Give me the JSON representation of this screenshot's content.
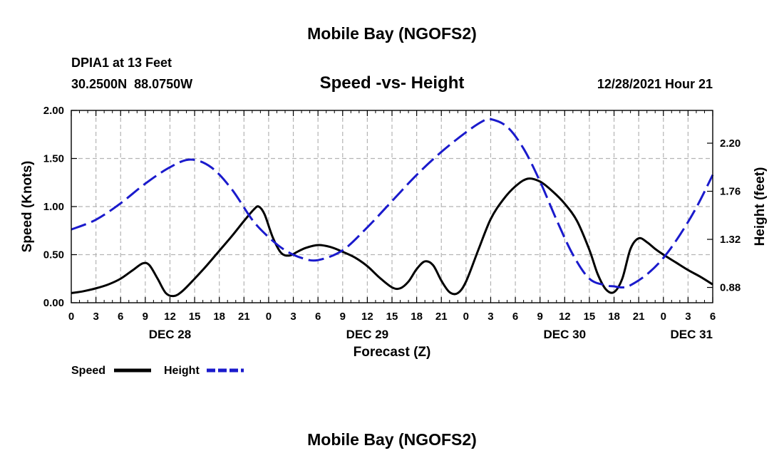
{
  "page": {
    "title_top": "Mobile Bay (NGOFS2)",
    "title_bottom": "Mobile Bay (NGOFS2)",
    "station_line1": "DPIA1 at 13 Feet",
    "station_line2": "30.2500N  88.0750W",
    "plot_title": "Speed -vs- Height",
    "timestamp": "12/28/2021 Hour 21"
  },
  "legend": {
    "speed_label": "Speed",
    "height_label": "Height"
  },
  "colors": {
    "speed": "#000000",
    "height": "#1a1acc",
    "grid": "#b4b4b4"
  },
  "chart_data": {
    "type": "line",
    "title": "Speed -vs- Height",
    "xlabel": "Forecast (Z)",
    "ylabel": "Speed (Knots)",
    "ylabel_right": "Height (feet)",
    "grid": true,
    "xlim": [
      0,
      78
    ],
    "ylim": [
      0,
      2.0
    ],
    "ylim_right": [
      0.74,
      2.5
    ],
    "x_ticks": [
      0,
      3,
      6,
      9,
      12,
      15,
      18,
      21,
      24,
      27,
      30,
      33,
      36,
      39,
      42,
      45,
      48,
      51,
      54,
      57,
      60,
      63,
      66,
      69,
      72,
      75,
      78
    ],
    "x_tick_labels": [
      "0",
      "3",
      "6",
      "9",
      "12",
      "15",
      "18",
      "21",
      "0",
      "3",
      "6",
      "9",
      "12",
      "15",
      "18",
      "21",
      "0",
      "3",
      "6",
      "9",
      "12",
      "15",
      "18",
      "21",
      "0",
      "3",
      "6"
    ],
    "y_ticks": [
      0.0,
      0.5,
      1.0,
      1.5,
      2.0
    ],
    "y_tick_labels": [
      "0.00",
      "0.50",
      "1.00",
      "1.50",
      "2.00"
    ],
    "y_ticks_right": [
      0.88,
      1.32,
      1.76,
      2.2
    ],
    "y_tick_labels_right": [
      "0.88",
      "1.32",
      "1.76",
      "2.20"
    ],
    "day_labels": [
      {
        "label": "DEC 28",
        "x": 12
      },
      {
        "label": "DEC 29",
        "x": 36
      },
      {
        "label": "DEC 30",
        "x": 60
      },
      {
        "label": "DEC 31",
        "x": 78
      }
    ],
    "series": [
      {
        "name": "Speed",
        "axis": "left",
        "style": "solid",
        "x": [
          0,
          1.5,
          3,
          4.5,
          6,
          7.5,
          8.7,
          9.5,
          10.5,
          11.5,
          12.5,
          13.5,
          15,
          16.5,
          18,
          19.5,
          21,
          22.2,
          22.8,
          23.5,
          24.5,
          25.5,
          26.5,
          27.5,
          28.5,
          30,
          31.5,
          33,
          34.5,
          36,
          37.5,
          39,
          40,
          41,
          42,
          43,
          44,
          45,
          46,
          47,
          48,
          49.5,
          51,
          52.5,
          54,
          55.5,
          57,
          58.5,
          60,
          61.5,
          63,
          64,
          65,
          66,
          67,
          68,
          69,
          70,
          71,
          72,
          73.5,
          75,
          76.5,
          78
        ],
        "values": [
          0.1,
          0.12,
          0.15,
          0.19,
          0.25,
          0.34,
          0.41,
          0.39,
          0.25,
          0.1,
          0.07,
          0.12,
          0.25,
          0.39,
          0.54,
          0.69,
          0.85,
          0.97,
          1.0,
          0.92,
          0.68,
          0.52,
          0.49,
          0.53,
          0.57,
          0.6,
          0.58,
          0.53,
          0.47,
          0.38,
          0.26,
          0.16,
          0.15,
          0.22,
          0.35,
          0.43,
          0.39,
          0.23,
          0.11,
          0.1,
          0.22,
          0.55,
          0.87,
          1.07,
          1.21,
          1.29,
          1.26,
          1.16,
          1.03,
          0.85,
          0.55,
          0.3,
          0.14,
          0.11,
          0.25,
          0.56,
          0.67,
          0.63,
          0.56,
          0.5,
          0.42,
          0.34,
          0.27,
          0.19
        ]
      },
      {
        "name": "Height",
        "axis": "right",
        "style": "dashed",
        "x": [
          0,
          3,
          6,
          9,
          12,
          14.5,
          17,
          19.5,
          22,
          24,
          26,
          28,
          30,
          33,
          36,
          39,
          42,
          45,
          48,
          50,
          51,
          53,
          55,
          57,
          59,
          61,
          63,
          65,
          66,
          67,
          68,
          70,
          72,
          74,
          76,
          78
        ],
        "values": [
          1.41,
          1.5,
          1.65,
          1.83,
          1.98,
          2.05,
          1.98,
          1.78,
          1.5,
          1.34,
          1.22,
          1.15,
          1.13,
          1.22,
          1.43,
          1.67,
          1.91,
          2.12,
          2.3,
          2.4,
          2.42,
          2.35,
          2.15,
          1.85,
          1.5,
          1.18,
          0.96,
          0.9,
          0.89,
          0.88,
          0.9,
          1.0,
          1.15,
          1.36,
          1.61,
          1.91
        ]
      }
    ]
  }
}
